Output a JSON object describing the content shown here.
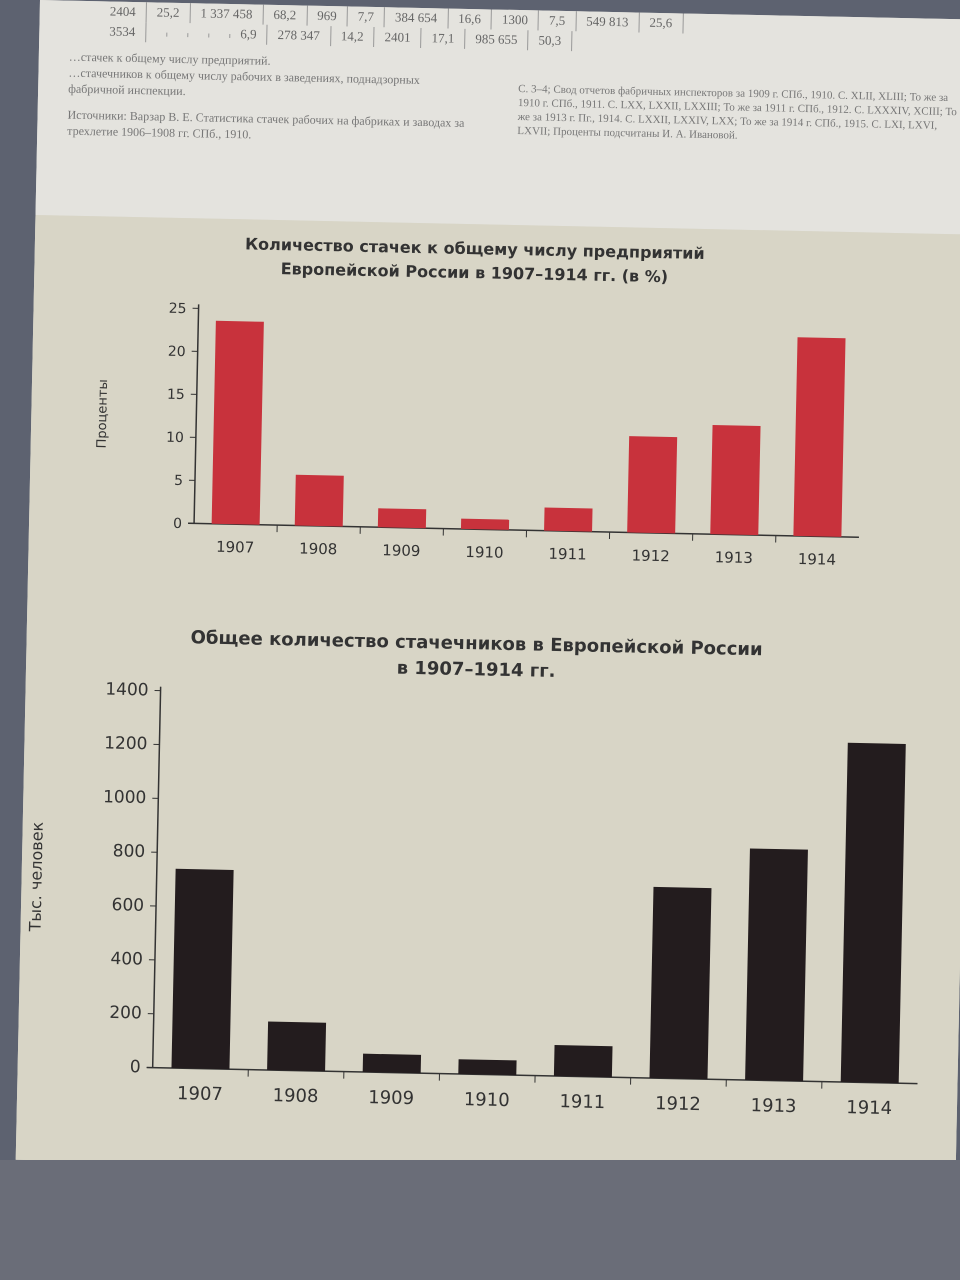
{
  "table_fragment": {
    "rows": [
      [
        "2404",
        "25,2",
        "1 337 458",
        "68,2",
        "969",
        "7,7",
        "384 654",
        "16,6",
        "1300",
        "7,5",
        "549 813",
        "25,6"
      ],
      [
        "3534",
        "",
        "",
        "",
        "",
        "6,9",
        "278 347",
        "14,2",
        "2401",
        "17,1",
        "985 655",
        "50,3"
      ]
    ]
  },
  "notes": {
    "left_1": "…стачек к общему числу предприятий.",
    "left_2": "…стачечников к общему числу рабочих в заведениях, поднадзорных фабричной инспекции.",
    "left_source": "Источники: Варзар В. Е. Статистика стачек рабочих на фабриках и заводах за трехлетие 1906–1908 гг. СПб., 1910.",
    "right_source": "С. 3–4; Свод отчетов фабричных инспекторов за 1909 г. СПб., 1910. С. XLII, XLIII; То же за 1910 г. СПб., 1911. С. LXX, LXXII, LXXIII; То же за 1911 г. СПб., 1912. С. LXXXIV, XCIII; То же за 1913 г. Пг., 1914. С. LXXII, LXXIV, LXX; То же за 1914 г. СПб., 1915. С. LXI, LXVI, LXVII; Проценты подсчитаны И. А. Ивановой."
  },
  "chart_data": [
    {
      "type": "bar",
      "title": "Количество стачек к общему числу предприятий Европейской России в 1907–1914 гг. (в %)",
      "title_line1": "Количество стачек к общему числу предприятий",
      "title_line2": "Европейской России в 1907–1914 гг. (в %)",
      "ylabel": "Проценты",
      "xlabel": "",
      "categories": [
        "1907",
        "1908",
        "1909",
        "1910",
        "1911",
        "1912",
        "1913",
        "1914"
      ],
      "values": [
        23.6,
        5.9,
        2.2,
        1.2,
        2.7,
        11.2,
        12.7,
        23.1
      ],
      "ylim": [
        0,
        25
      ],
      "yticks": [
        "0",
        "5",
        "10",
        "15",
        "20",
        "25"
      ],
      "grid": false,
      "color": "#c8323c"
    },
    {
      "type": "bar",
      "title": "Общее количество стачечников в Европейской России в 1907–1914 гг.",
      "title_line1": "Общее количество стачечников в Европейской России",
      "title_line2": "в 1907–1914 гг.",
      "ylabel": "Тыс. человек",
      "xlabel": "",
      "categories": [
        "1907",
        "1908",
        "1909",
        "1910",
        "1911",
        "1912",
        "1913",
        "1914"
      ],
      "values": [
        740,
        180,
        68,
        55,
        115,
        710,
        860,
        1260
      ],
      "ylim": [
        0,
        1400
      ],
      "yticks": [
        "0",
        "200",
        "400",
        "600",
        "800",
        "1000",
        "1200",
        "1400"
      ],
      "grid": false,
      "color": "#231c1e"
    }
  ]
}
